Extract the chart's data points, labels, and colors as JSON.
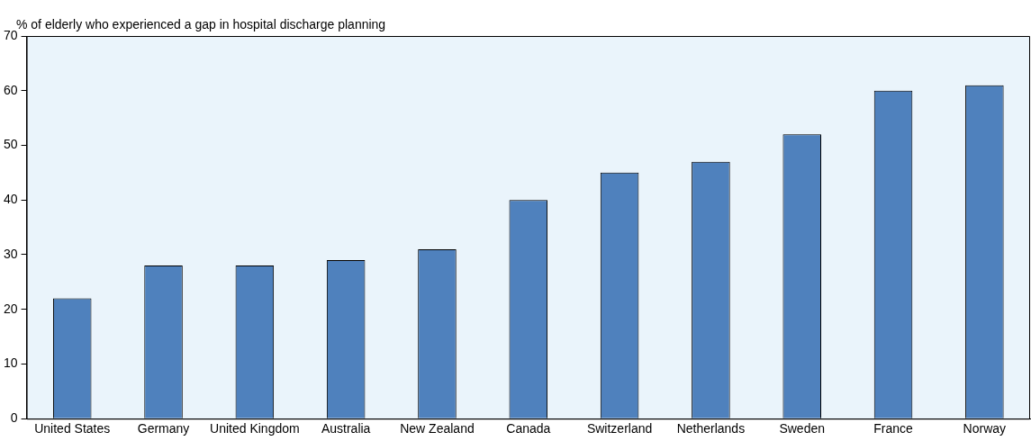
{
  "chart_data": {
    "type": "bar",
    "ylabel": "% of elderly who experienced a gap in hospital discharge planning",
    "categories": [
      "United States",
      "Germany",
      "United Kingdom",
      "Australia",
      "New Zealand",
      "Canada",
      "Switzerland",
      "Netherlands",
      "Sweden",
      "France",
      "Norway"
    ],
    "values": [
      22,
      28,
      28,
      29,
      31,
      40,
      45,
      47,
      52,
      60,
      61
    ],
    "color": "#4f81bd",
    "ylim": [
      0,
      70
    ],
    "yticks": [
      0,
      10,
      20,
      30,
      40,
      50,
      60,
      70
    ],
    "grid": false
  }
}
